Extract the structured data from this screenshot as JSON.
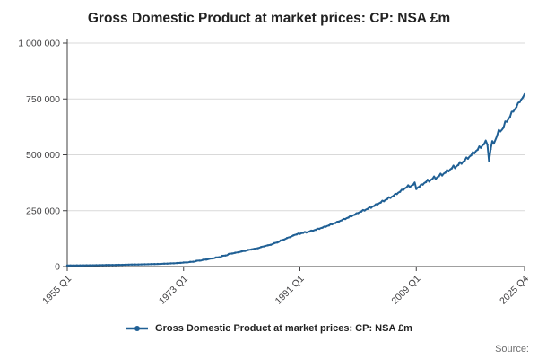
{
  "title": "Gross Domestic Product at market prices: CP: NSA £m",
  "legend": {
    "label": "Gross Domestic Product at market prices: CP: NSA £m"
  },
  "source_label": "Source:",
  "colors": {
    "line": "#206095",
    "grid": "#d9d9d9",
    "axis": "#414042",
    "text": "#414042"
  },
  "chart_data": {
    "type": "line",
    "title": "Gross Domestic Product at market prices: CP: NSA £m",
    "xlabel": "",
    "ylabel": "",
    "unit": "£m",
    "frequency": "quarterly",
    "x_start_label": "1955 Q1",
    "x_end_label": "2025 Q4",
    "ylim": [
      0,
      1000000
    ],
    "grid": "horizontal",
    "legend_position": "bottom",
    "yticks": [
      {
        "value": 0,
        "label": "0"
      },
      {
        "value": 250000,
        "label": "250 000"
      },
      {
        "value": 500000,
        "label": "500 000"
      },
      {
        "value": 750000,
        "label": "750 000"
      },
      {
        "value": 1000000,
        "label": "1 000 000"
      }
    ],
    "xticks": [
      {
        "index": 0,
        "label": "1955 Q1"
      },
      {
        "index": 72,
        "label": "1973 Q1"
      },
      {
        "index": 144,
        "label": "1991 Q1"
      },
      {
        "index": 216,
        "label": "2009 Q1"
      },
      {
        "index": 283,
        "label": "2025 Q4"
      }
    ],
    "series": [
      {
        "name": "Gross Domestic Product at market prices: CP: NSA £m",
        "values": [
          4630,
          4730,
          4770,
          4920,
          4920,
          5030,
          5080,
          5230,
          5220,
          5320,
          5380,
          5540,
          5460,
          5570,
          5630,
          5800,
          5800,
          5920,
          5980,
          6160,
          6240,
          6370,
          6430,
          6620,
          6680,
          6820,
          6880,
          7090,
          7020,
          7160,
          7240,
          7450,
          7460,
          7610,
          7690,
          7920,
          8140,
          8310,
          8390,
          8640,
          8780,
          8960,
          9050,
          9320,
          9410,
          9600,
          9700,
          9990,
          9950,
          10150,
          10250,
          10560,
          10730,
          10950,
          11060,
          11390,
          11600,
          11840,
          11960,
          12320,
          12680,
          12940,
          13070,
          13460,
          14140,
          14430,
          14570,
          15010,
          15800,
          16120,
          16280,
          16770,
          18040,
          18410,
          18590,
          19150,
          20960,
          21390,
          21610,
          22250,
          25840,
          26370,
          26630,
          27430,
          30230,
          30850,
          31160,
          32090,
          35100,
          35820,
          36180,
          37260,
          40460,
          41290,
          41710,
          42950,
          47780,
          48760,
          49250,
          50720,
          56550,
          57710,
          58290,
          60030,
          61910,
          63180,
          63820,
          65720,
          67760,
          69150,
          69850,
          71930,
          74100,
          75620,
          76380,
          78660,
          79460,
          81090,
          81910,
          84350,
          87750,
          89550,
          90450,
          93150,
          94580,
          96520,
          97490,
          100400,
          104330,
          106470,
          107540,
          110750,
          116510,
          118900,
          120100,
          123680,
          127730,
          130350,
          131660,
          135590,
          139430,
          142290,
          143720,
          148010,
          146250,
          149250,
          150750,
          155250,
          152100,
          155220,
          156780,
          161460,
          159900,
          163180,
          164820,
          169740,
          168680,
          172140,
          173870,
          179060,
          178430,
          182090,
          183920,
          189410,
          189150,
          193030,
          194970,
          200790,
          200850,
          204970,
          207030,
          213210,
          212550,
          216910,
          219090,
          225630,
          225230,
          229850,
          232160,
          239090,
          238880,
          243780,
          246230,
          253580,
          250580,
          255720,
          258290,
          266000,
          263250,
          268650,
          271350,
          279450,
          277880,
          283580,
          286430,
          294980,
          292500,
          298500,
          301500,
          310500,
          307130,
          313430,
          316580,
          326030,
          324680,
          331340,
          334670,
          344660,
          343200,
          350240,
          353760,
          364320,
          354900,
          362180,
          365820,
          376740,
          347100,
          354220,
          357780,
          368460,
          366600,
          374120,
          377880,
          389160,
          380250,
          388050,
          391950,
          403650,
          391950,
          399990,
          404010,
          416070,
          407550,
          415910,
          420090,
          432630,
          426080,
          434820,
          439190,
          452300,
          440700,
          449740,
          454260,
          467820,
          460200,
          469640,
          474360,
          488520,
          482630,
          492530,
          497480,
          512330,
          507000,
          517400,
          522600,
          538200,
          531380,
          542280,
          547730,
          564080,
          545000,
          470000,
          525000,
          562000,
          550000,
          568000,
          585000,
          612000,
          605000,
          612000,
          622000,
          650000,
          648000,
          660000,
          670000,
          693000,
          694000,
          704000,
          714000,
          733000,
          736000,
          748000,
          757000,
          772000
        ]
      }
    ]
  }
}
